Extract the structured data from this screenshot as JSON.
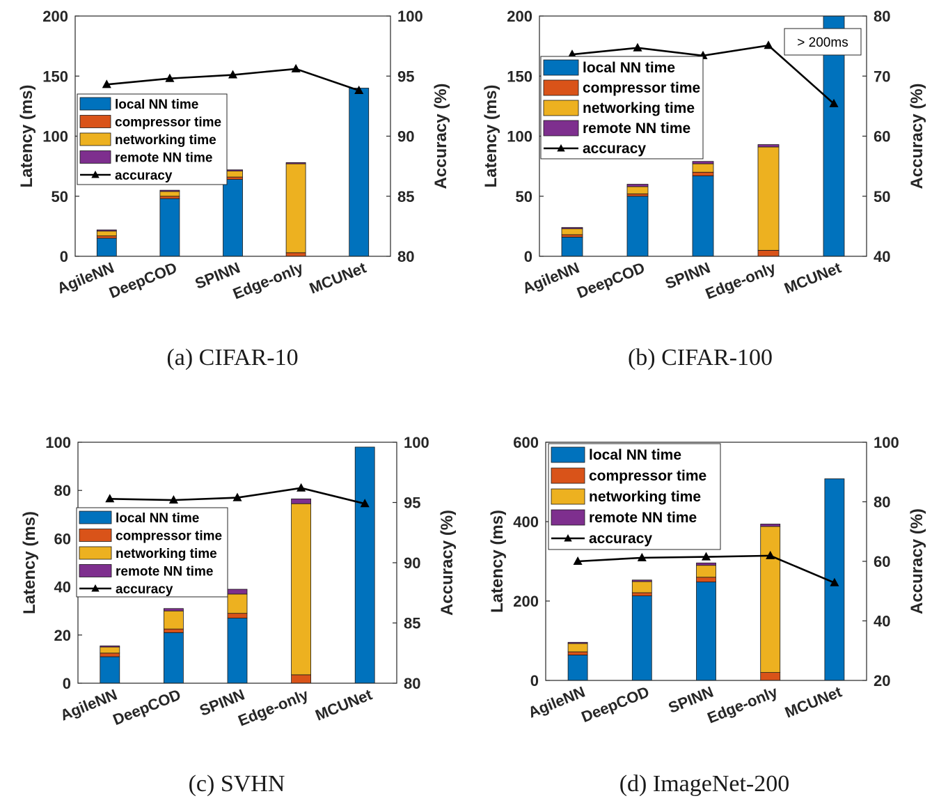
{
  "colors": {
    "local": "#0072BD",
    "compressor": "#D95319",
    "networking": "#EDB120",
    "remote": "#7E2F8E",
    "accuracy": "#000000"
  },
  "legend_labels": [
    "local NN time",
    "compressor time",
    "networking time",
    "remote NN time",
    "accuracy"
  ],
  "chart_data": [
    {
      "type": "bar",
      "caption": "(a)  CIFAR-10",
      "categories": [
        "AgileNN",
        "DeepCOD",
        "SPINN",
        "Edge-only",
        "MCUNet"
      ],
      "ylabel": "Latency (ms)",
      "y2label": "Accuracy (%)",
      "ylim": [
        0,
        200
      ],
      "yticks": [
        0,
        50,
        100,
        150,
        200
      ],
      "y2lim": [
        80,
        100
      ],
      "y2ticks": [
        80,
        85,
        90,
        95,
        100
      ],
      "legend_position": "middle-left",
      "series": [
        {
          "name": "local NN time",
          "values": [
            15,
            48,
            64,
            0,
            140
          ]
        },
        {
          "name": "compressor time",
          "values": [
            2,
            2,
            2,
            3,
            0
          ]
        },
        {
          "name": "networking time",
          "values": [
            4,
            4,
            5,
            74,
            0
          ]
        },
        {
          "name": "remote NN time",
          "values": [
            1,
            1,
            1,
            1,
            0
          ]
        }
      ],
      "accuracy": {
        "name": "accuracy",
        "values": [
          94.3,
          94.8,
          95.1,
          95.6,
          93.8
        ]
      }
    },
    {
      "type": "bar",
      "caption": "(b)  CIFAR-100",
      "categories": [
        "AgileNN",
        "DeepCOD",
        "SPINN",
        "Edge-only",
        "MCUNet"
      ],
      "ylabel": "Latency (ms)",
      "y2label": "Accuracy (%)",
      "ylim": [
        0,
        200
      ],
      "yticks": [
        0,
        50,
        100,
        150,
        200
      ],
      "y2lim": [
        40,
        80
      ],
      "y2ticks": [
        40,
        50,
        60,
        70,
        80
      ],
      "legend_position": "top-left",
      "annotation": "> 200ms",
      "series": [
        {
          "name": "local NN time",
          "values": [
            16,
            50,
            67,
            0,
            200
          ]
        },
        {
          "name": "compressor time",
          "values": [
            2,
            2,
            3,
            5,
            0
          ]
        },
        {
          "name": "networking time",
          "values": [
            5,
            6,
            7,
            86,
            0
          ]
        },
        {
          "name": "remote NN time",
          "values": [
            1,
            2,
            2,
            2,
            0
          ]
        }
      ],
      "accuracy": {
        "name": "accuracy",
        "values": [
          73.6,
          74.7,
          73.4,
          75.1,
          65.4
        ]
      }
    },
    {
      "type": "bar",
      "caption": "(c)  SVHN",
      "categories": [
        "AgileNN",
        "DeepCOD",
        "SPINN",
        "Edge-only",
        "MCUNet"
      ],
      "ylabel": "Latency (ms)",
      "y2label": "Accuracy (%)",
      "ylim": [
        0,
        100
      ],
      "yticks": [
        0,
        20,
        40,
        60,
        80,
        100
      ],
      "y2lim": [
        80,
        100
      ],
      "y2ticks": [
        80,
        85,
        90,
        95,
        100
      ],
      "legend_position": "middle-left",
      "series": [
        {
          "name": "local NN time",
          "values": [
            11,
            21,
            27,
            0,
            98
          ]
        },
        {
          "name": "compressor time",
          "values": [
            1.5,
            1.5,
            2,
            3.5,
            0
          ]
        },
        {
          "name": "networking time",
          "values": [
            2.5,
            7.5,
            8,
            71,
            0
          ]
        },
        {
          "name": "remote NN time",
          "values": [
            0.5,
            1,
            2,
            2,
            0
          ]
        }
      ],
      "accuracy": {
        "name": "accuracy",
        "values": [
          95.3,
          95.2,
          95.4,
          96.2,
          94.9
        ]
      }
    },
    {
      "type": "bar",
      "caption": "(d)  ImageNet-200",
      "categories": [
        "AgileNN",
        "DeepCOD",
        "SPINN",
        "Edge-only",
        "MCUNet"
      ],
      "ylabel": "Latency (ms)",
      "y2label": "Accuracy (%)",
      "ylim": [
        0,
        600
      ],
      "yticks": [
        0,
        200,
        400,
        600
      ],
      "y2lim": [
        20,
        100
      ],
      "y2ticks": [
        20,
        40,
        60,
        80,
        100
      ],
      "legend_position": "top-left",
      "series": [
        {
          "name": "local NN time",
          "values": [
            64,
            213,
            248,
            0,
            508
          ]
        },
        {
          "name": "compressor time",
          "values": [
            8,
            8,
            12,
            20,
            0
          ]
        },
        {
          "name": "networking time",
          "values": [
            21,
            28,
            30,
            368,
            0
          ]
        },
        {
          "name": "remote NN time",
          "values": [
            3,
            4,
            6,
            6,
            0
          ]
        }
      ],
      "accuracy": {
        "name": "accuracy",
        "values": [
          60,
          61.2,
          61.5,
          61.9,
          52.8
        ]
      }
    }
  ]
}
